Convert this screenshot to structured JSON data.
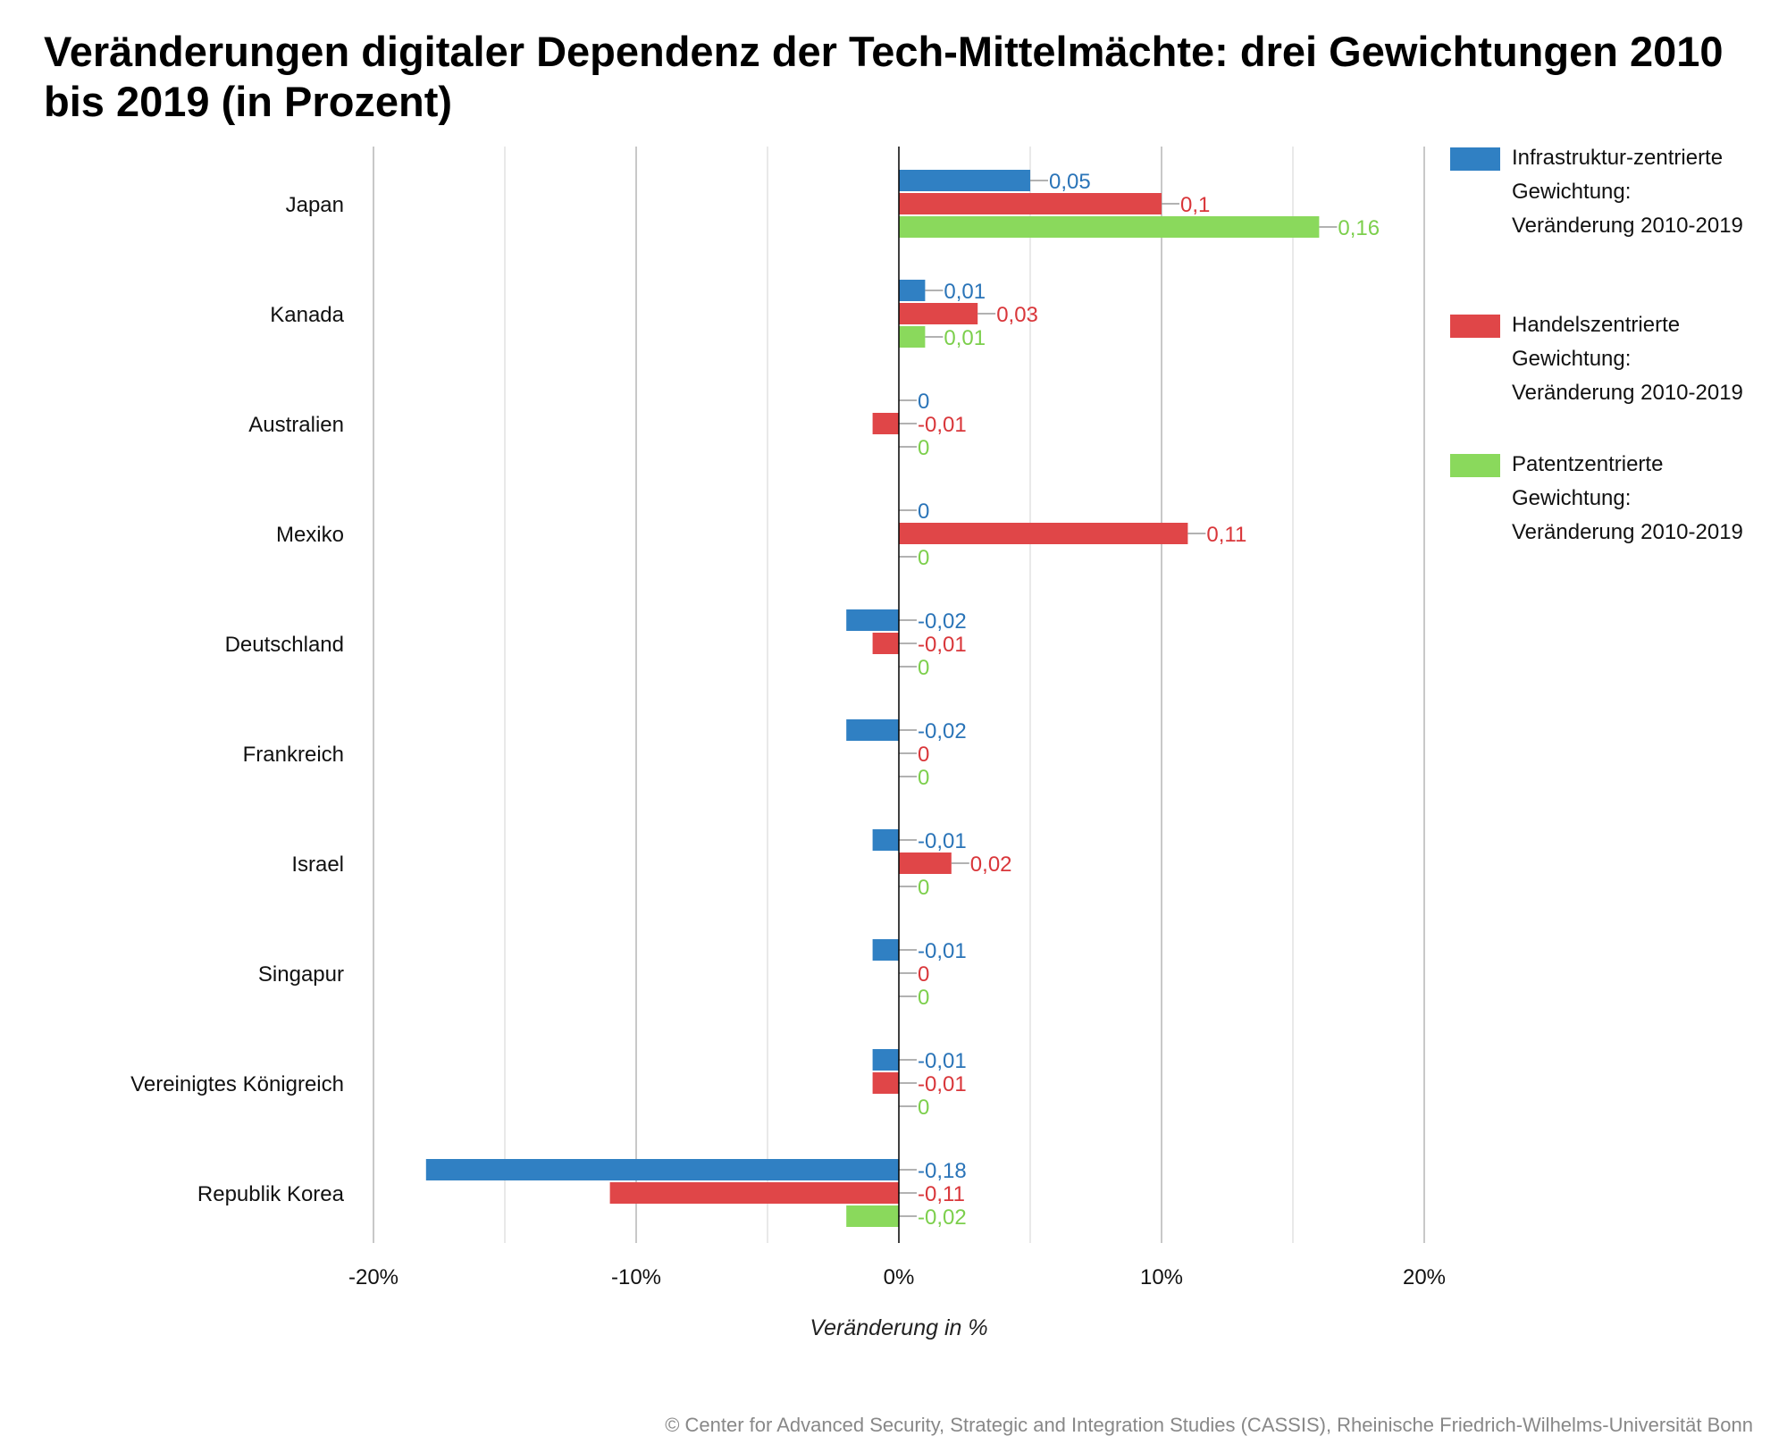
{
  "title": "Veränderungen digitaler Dependenz der Tech-Mittelmächte: drei Gewichtungen 2010 bis 2019 (in Prozent)",
  "footer": "© Center for Advanced Security, Strategic and Integration Studies (CASSIS), Rheinische Friedrich-Wilhelms-Universität Bonn",
  "chart_data": {
    "type": "bar",
    "orientation": "horizontal",
    "title": "Veränderungen digitaler Dependenz der Tech-Mittelmächte: drei Gewichtungen 2010 bis 2019 (in Prozent)",
    "xlabel": "Veränderung in %",
    "ylabel": "",
    "xlim": [
      -20,
      20
    ],
    "xticks": [
      -20,
      -10,
      0,
      10,
      20
    ],
    "xtick_labels": [
      "-20%",
      "-10%",
      "0%",
      "10%",
      "20%"
    ],
    "grid": true,
    "legend_position": "right",
    "categories": [
      "Japan",
      "Kanada",
      "Australien",
      "Mexiko",
      "Deutschland",
      "Frankreich",
      "Israel",
      "Singapur",
      "Vereinigtes Königreich",
      "Republik Korea"
    ],
    "series": [
      {
        "name": "Infrastruktur-zentrierte Gewichtung: Veränderung 2010-2019",
        "color": "#3080c3",
        "values": [
          0.05,
          0.01,
          0,
          0,
          -0.02,
          -0.02,
          -0.01,
          -0.01,
          -0.01,
          -0.18
        ],
        "labels": [
          "0,05",
          "0,01",
          "0",
          "0",
          "-0,02",
          "-0,02",
          "-0,01",
          "-0,01",
          "-0,01",
          "-0,18"
        ]
      },
      {
        "name": "Handelszentrierte Gewichtung: Veränderung 2010-2019",
        "color": "#e04648",
        "values": [
          0.1,
          0.03,
          -0.01,
          0.11,
          -0.01,
          0,
          0.02,
          0,
          -0.01,
          -0.11
        ],
        "labels": [
          "0,1",
          "0,03",
          "-0,01",
          "0,11",
          "-0,01",
          "0",
          "0,02",
          "0",
          "-0,01",
          "-0,11"
        ]
      },
      {
        "name": "Patentzentrierte Gewichtung: Veränderung 2010-2019",
        "color": "#8ad95c",
        "values": [
          0.16,
          0.01,
          0,
          0,
          0,
          0,
          0,
          0,
          0,
          -0.02
        ],
        "labels": [
          "0,16",
          "0,01",
          "0",
          "0",
          "0",
          "0",
          "0",
          "0",
          "0",
          "-0,02"
        ]
      }
    ]
  }
}
